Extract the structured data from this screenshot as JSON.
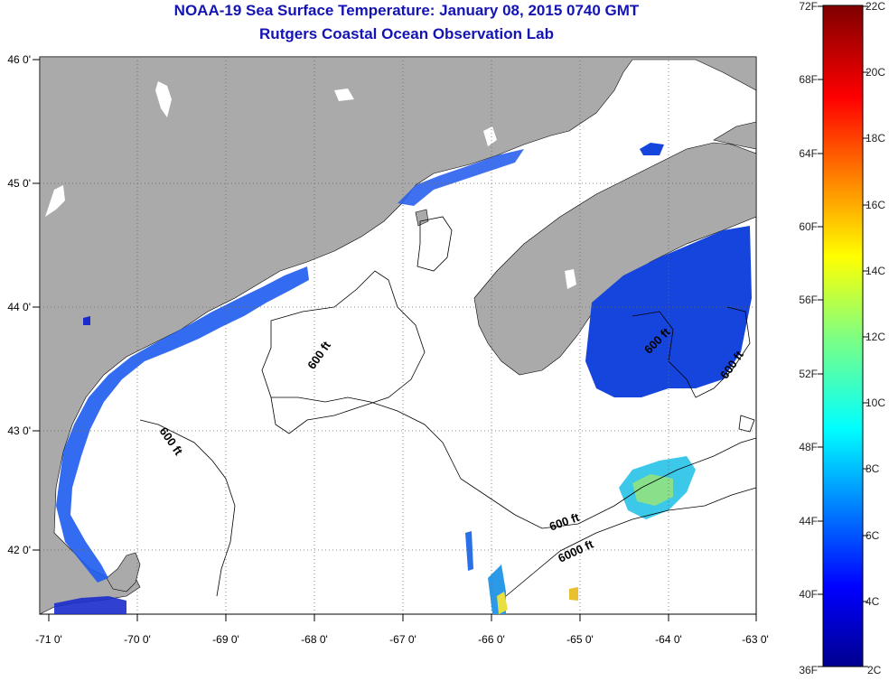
{
  "title": "NOAA-19 Sea Surface Temperature:  January 08, 2015 0740 GMT",
  "subtitle": "Rutgers Coastal Ocean Observation Lab",
  "x_ticks": [
    "-71 0'",
    "-70 0'",
    "-69 0'",
    "-68 0'",
    "-67 0'",
    "-66 0'",
    "-65 0'",
    "-64 0'",
    "-63 0'"
  ],
  "y_ticks": [
    "46 0'",
    "45 0'",
    "44 0'",
    "43 0'",
    "42 0'"
  ],
  "contour_labels": [
    "600 ft",
    "600 ft",
    "600 ft",
    "600 ft",
    "600 ft",
    "6000 ft"
  ],
  "colorbar": {
    "left_labels": [
      "72F",
      "68F",
      "64F",
      "60F",
      "56F",
      "52F",
      "48F",
      "44F",
      "40F",
      "36F"
    ],
    "right_labels": [
      "22C",
      "20C",
      "18C",
      "16C",
      "14C",
      "12C",
      "10C",
      "8C",
      "6C",
      "4C",
      "2C"
    ]
  },
  "colors": {
    "land": "#aaaaaa",
    "water": "#ffffff",
    "title": "#1414b4"
  }
}
